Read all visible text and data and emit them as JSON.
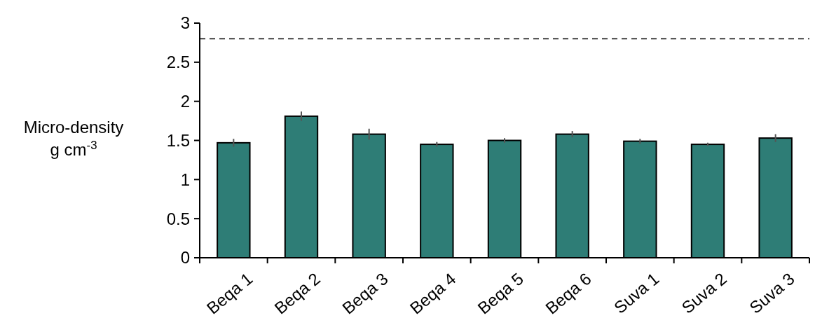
{
  "chart_data": {
    "type": "bar",
    "ylabel": "Micro-density\ng cm$^{-3}$",
    "categories": [
      "Beqa 1",
      "Beqa 2",
      "Beqa 3",
      "Beqa 4",
      "Beqa 5",
      "Beqa 6",
      "Suva 1",
      "Suva 2",
      "Suva 3"
    ],
    "values": [
      1.47,
      1.81,
      1.58,
      1.45,
      1.5,
      1.58,
      1.49,
      1.45,
      1.53
    ],
    "errors": [
      0.05,
      0.06,
      0.07,
      0.03,
      0.03,
      0.04,
      0.03,
      0.02,
      0.05
    ],
    "color": "#2e7d76",
    "ylim": [
      0,
      3
    ],
    "yticks": [
      0,
      0.5,
      1,
      1.5,
      2,
      2.5,
      3
    ],
    "ref_lines": [
      {
        "axis": "y",
        "value": 2.8,
        "color": "#404040",
        "line_style": "dashed"
      }
    ],
    "grid": false
  }
}
